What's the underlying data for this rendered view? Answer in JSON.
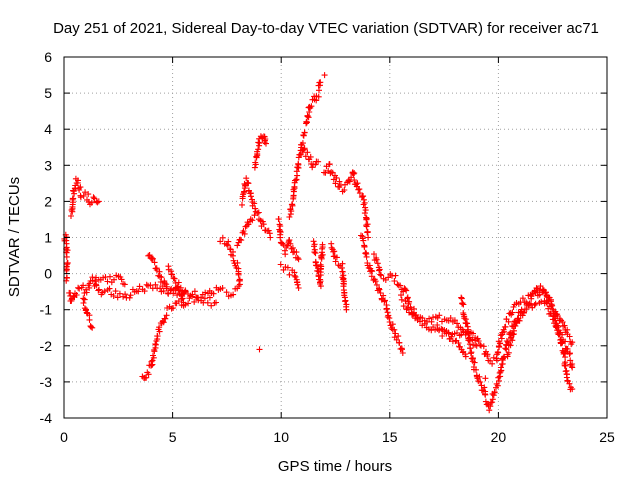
{
  "chart_data": {
    "type": "scatter",
    "title": "Day 251 of 2021, Sidereal Day-to-day VTEC variation (SDTVAR) for receiver ac71",
    "xlabel": "GPS time / hours",
    "ylabel": "SDTVAR / TECUs",
    "xlim": [
      0,
      25
    ],
    "ylim": [
      -4,
      6
    ],
    "xticks": [
      0,
      5,
      10,
      15,
      20,
      25
    ],
    "xtick_labels": [
      "0",
      "5",
      "10",
      "15",
      "20",
      "25"
    ],
    "yticks": [
      -4,
      -3,
      -2,
      -1,
      0,
      1,
      2,
      3,
      4,
      5,
      6
    ],
    "ytick_labels": [
      "-4",
      "-3",
      "-2",
      "-1",
      "0",
      "1",
      "2",
      "3",
      "4",
      "5",
      "6"
    ],
    "grid": true,
    "marker": "+",
    "series": [
      {
        "name": "SDTVAR",
        "color": "#ff0000",
        "tracks": [
          [
            [
              0.0,
              1.0
            ],
            [
              0.1,
              1.0
            ],
            [
              0.15,
              0.3
            ],
            [
              0.1,
              -0.2
            ]
          ],
          [
            [
              0.25,
              -0.5
            ],
            [
              0.35,
              -0.8
            ],
            [
              0.5,
              -0.6
            ],
            [
              0.8,
              -0.4
            ],
            [
              1.0,
              -0.5
            ],
            [
              1.3,
              -0.2
            ],
            [
              1.6,
              -0.5
            ],
            [
              2.0,
              -0.5
            ],
            [
              2.5,
              -0.6
            ],
            [
              3.0,
              -0.6
            ],
            [
              3.5,
              -0.45
            ],
            [
              4.0,
              -0.4
            ],
            [
              4.5,
              -0.4
            ],
            [
              5.0,
              -0.5
            ],
            [
              5.5,
              -0.55
            ],
            [
              6.0,
              -0.6
            ],
            [
              6.5,
              -0.55
            ],
            [
              7.0,
              -0.5
            ],
            [
              7.3,
              -0.4
            ]
          ],
          [
            [
              0.35,
              1.6
            ],
            [
              0.45,
              2.3
            ],
            [
              0.6,
              2.6
            ],
            [
              0.8,
              2.2
            ],
            [
              1.0,
              2.2
            ],
            [
              1.2,
              2.0
            ],
            [
              1.4,
              2.1
            ],
            [
              1.6,
              2.0
            ]
          ],
          [
            [
              0.9,
              -0.7
            ],
            [
              1.1,
              -1.2
            ],
            [
              1.3,
              -1.5
            ]
          ],
          [
            [
              1.4,
              -0.1
            ],
            [
              2.0,
              -0.2
            ],
            [
              2.5,
              -0.15
            ],
            [
              2.8,
              -0.3
            ]
          ],
          [
            [
              3.6,
              -2.9
            ],
            [
              3.8,
              -2.8
            ],
            [
              4.0,
              -2.6
            ],
            [
              4.2,
              -2.0
            ],
            [
              4.4,
              -1.5
            ],
            [
              4.7,
              -1.1
            ],
            [
              5.0,
              -0.9
            ],
            [
              5.5,
              -0.8
            ],
            [
              6.0,
              -0.7
            ],
            [
              6.5,
              -0.75
            ],
            [
              7.0,
              -0.8
            ]
          ],
          [
            [
              3.9,
              0.6
            ],
            [
              4.2,
              0.2
            ],
            [
              4.5,
              -0.2
            ],
            [
              4.8,
              -0.5
            ],
            [
              5.2,
              -0.3
            ],
            [
              5.6,
              -0.5
            ]
          ],
          [
            [
              4.8,
              0.1
            ],
            [
              5.2,
              -0.3
            ],
            [
              5.5,
              -0.8
            ]
          ],
          [
            [
              7.2,
              1.0
            ],
            [
              7.5,
              0.9
            ],
            [
              7.8,
              0.5
            ],
            [
              8.0,
              0.2
            ],
            [
              8.1,
              -0.2
            ]
          ],
          [
            [
              7.5,
              -0.6
            ],
            [
              7.8,
              -0.5
            ],
            [
              8.1,
              -0.3
            ]
          ],
          [
            [
              8.0,
              0.8
            ],
            [
              8.3,
              1.2
            ],
            [
              8.6,
              1.5
            ],
            [
              8.9,
              1.7
            ],
            [
              9.2,
              1.3
            ],
            [
              9.5,
              1.0
            ]
          ],
          [
            [
              8.2,
              2.0
            ],
            [
              8.4,
              2.6
            ],
            [
              8.6,
              2.2
            ],
            [
              8.8,
              1.8
            ]
          ],
          [
            [
              8.8,
              3.0
            ],
            [
              9.0,
              3.7
            ],
            [
              9.2,
              3.9
            ],
            [
              9.3,
              3.6
            ]
          ],
          [
            [
              9.9,
              1.5
            ],
            [
              10.0,
              0.8
            ],
            [
              10.2,
              0.6
            ],
            [
              10.4,
              0.9
            ],
            [
              10.6,
              0.6
            ],
            [
              10.8,
              0.4
            ]
          ],
          [
            [
              10.0,
              0.2
            ],
            [
              10.3,
              0.1
            ],
            [
              10.6,
              0.0
            ],
            [
              10.8,
              -0.4
            ]
          ],
          [
            [
              10.4,
              1.6
            ],
            [
              10.6,
              2.3
            ],
            [
              10.8,
              3.1
            ],
            [
              11.0,
              3.5
            ],
            [
              11.3,
              3.2
            ],
            [
              11.5,
              3.0
            ],
            [
              11.7,
              3.1
            ]
          ],
          [
            [
              10.9,
              3.5
            ],
            [
              11.1,
              4.0
            ],
            [
              11.3,
              4.6
            ],
            [
              11.5,
              4.8
            ],
            [
              11.7,
              5.0
            ],
            [
              11.8,
              5.3
            ]
          ],
          [
            [
              11.5,
              0.8
            ],
            [
              11.6,
              0.3
            ],
            [
              11.8,
              -0.3
            ],
            [
              11.9,
              0.8
            ]
          ],
          [
            [
              12.0,
              2.8
            ],
            [
              12.2,
              3.0
            ],
            [
              12.5,
              2.6
            ],
            [
              12.8,
              2.3
            ],
            [
              13.1,
              2.5
            ],
            [
              13.3,
              2.8
            ],
            [
              13.5,
              2.4
            ],
            [
              13.7,
              2.2
            ],
            [
              13.9,
              1.7
            ],
            [
              14.0,
              1.0
            ]
          ],
          [
            [
              12.3,
              0.8
            ],
            [
              12.5,
              0.4
            ],
            [
              12.8,
              0.2
            ],
            [
              12.9,
              -0.5
            ],
            [
              13.0,
              -1.0
            ]
          ],
          [
            [
              13.7,
              1.0
            ],
            [
              14.0,
              0.3
            ],
            [
              14.2,
              -0.1
            ],
            [
              14.4,
              -0.3
            ],
            [
              14.6,
              -0.6
            ],
            [
              14.8,
              -0.8
            ],
            [
              15.0,
              -1.3
            ],
            [
              15.2,
              -1.6
            ],
            [
              15.4,
              -1.9
            ],
            [
              15.6,
              -2.2
            ]
          ],
          [
            [
              14.3,
              0.5
            ],
            [
              14.6,
              0.0
            ],
            [
              14.9,
              -0.1
            ],
            [
              15.2,
              -0.1
            ],
            [
              15.5,
              -0.3
            ],
            [
              15.8,
              -0.6
            ],
            [
              16.0,
              -1.0
            ],
            [
              16.3,
              -1.3
            ],
            [
              16.6,
              -1.4
            ],
            [
              17.0,
              -1.5
            ],
            [
              17.4,
              -1.6
            ],
            [
              17.8,
              -1.7
            ],
            [
              18.1,
              -1.6
            ],
            [
              18.4,
              -1.7
            ],
            [
              18.7,
              -1.8
            ],
            [
              19.0,
              -2.0
            ]
          ],
          [
            [
              15.5,
              -0.7
            ],
            [
              15.9,
              -1.0
            ],
            [
              16.2,
              -1.1
            ],
            [
              16.5,
              -1.2
            ],
            [
              16.9,
              -1.3
            ],
            [
              17.2,
              -1.25
            ],
            [
              17.6,
              -1.3
            ],
            [
              18.0,
              -1.35
            ],
            [
              18.3,
              -1.5
            ],
            [
              18.6,
              -1.55
            ],
            [
              18.9,
              -1.7
            ],
            [
              19.2,
              -2.0
            ]
          ],
          [
            [
              17.2,
              -1.5
            ],
            [
              17.6,
              -1.7
            ],
            [
              18.0,
              -1.9
            ],
            [
              18.2,
              -2.0
            ],
            [
              18.5,
              -2.3
            ]
          ],
          [
            [
              18.3,
              -0.7
            ],
            [
              18.5,
              -1.3
            ],
            [
              18.7,
              -2.0
            ],
            [
              18.9,
              -2.6
            ],
            [
              19.1,
              -2.9
            ],
            [
              19.3,
              -3.2
            ],
            [
              19.5,
              -3.6
            ],
            [
              19.6,
              -3.7
            ],
            [
              19.8,
              -3.3
            ],
            [
              20.0,
              -3.0
            ],
            [
              20.2,
              -2.4
            ],
            [
              20.4,
              -1.9
            ],
            [
              20.7,
              -1.5
            ],
            [
              21.0,
              -1.1
            ],
            [
              21.3,
              -0.9
            ],
            [
              21.6,
              -0.6
            ],
            [
              21.8,
              -0.5
            ],
            [
              22.0,
              -0.5
            ],
            [
              22.2,
              -0.6
            ],
            [
              22.4,
              -0.8
            ],
            [
              22.6,
              -1.2
            ],
            [
              22.8,
              -1.7
            ],
            [
              23.0,
              -2.2
            ],
            [
              23.1,
              -2.6
            ],
            [
              23.2,
              -3.0
            ],
            [
              23.4,
              -3.2
            ]
          ],
          [
            [
              19.3,
              -2.1
            ],
            [
              19.6,
              -2.5
            ],
            [
              19.9,
              -2.4
            ],
            [
              20.1,
              -1.8
            ],
            [
              20.4,
              -1.3
            ],
            [
              20.7,
              -1.0
            ],
            [
              21.0,
              -0.8
            ],
            [
              21.3,
              -0.7
            ],
            [
              21.6,
              -0.6
            ],
            [
              21.9,
              -0.4
            ],
            [
              22.1,
              -0.55
            ],
            [
              22.4,
              -0.8
            ],
            [
              22.7,
              -1.1
            ],
            [
              23.0,
              -1.4
            ],
            [
              23.2,
              -1.7
            ],
            [
              23.4,
              -1.9
            ]
          ],
          [
            [
              20.4,
              -2.2
            ],
            [
              20.6,
              -1.8
            ],
            [
              20.9,
              -1.3
            ],
            [
              21.2,
              -1.0
            ],
            [
              21.5,
              -0.9
            ],
            [
              21.8,
              -0.7
            ],
            [
              22.1,
              -0.75
            ],
            [
              22.4,
              -1.1
            ],
            [
              22.7,
              -1.5
            ],
            [
              23.0,
              -1.9
            ],
            [
              23.3,
              -2.3
            ],
            [
              23.4,
              -2.6
            ]
          ]
        ],
        "isolated_points": [
          [
            9.0,
            -2.1
          ],
          [
            12.0,
            5.5
          ],
          [
            12.9,
            -0.6
          ],
          [
            19.4,
            -2.9
          ],
          [
            20.2,
            -2.5
          ]
        ]
      }
    ]
  }
}
